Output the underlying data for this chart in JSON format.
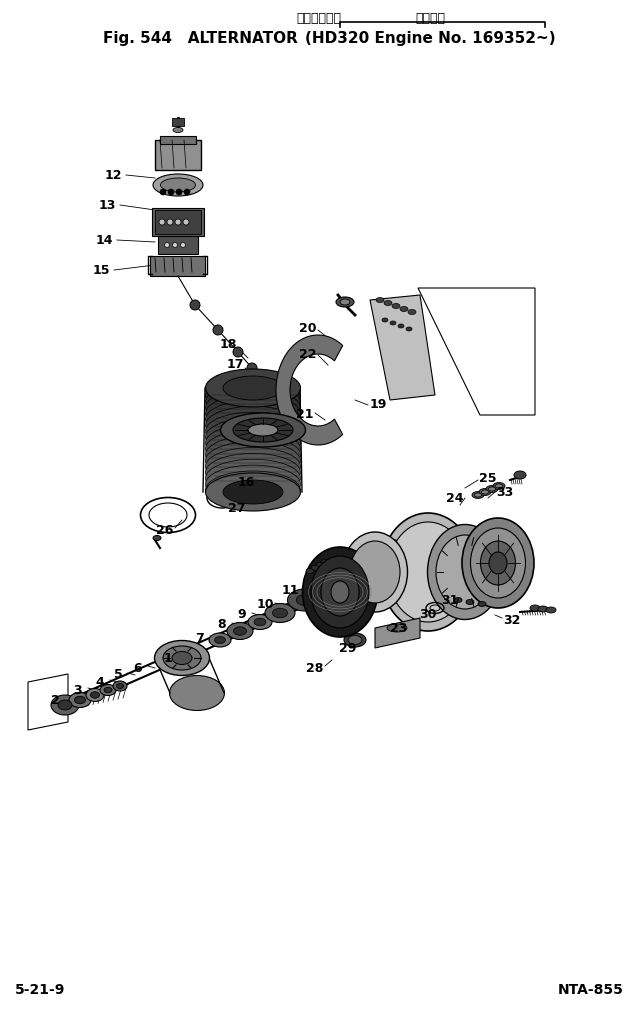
{
  "title_jp1": "オルタネータ",
  "title_jp2": "適用号機",
  "title_main": "Fig. 544   ALTERNATOR",
  "title_bracket": "(HD320 Engine No. 169352~)",
  "footer_left": "5-21-9",
  "footer_right": "NTA-855",
  "bg_color": "#ffffff",
  "fig_width": 6.39,
  "fig_height": 10.18,
  "dpi": 100
}
